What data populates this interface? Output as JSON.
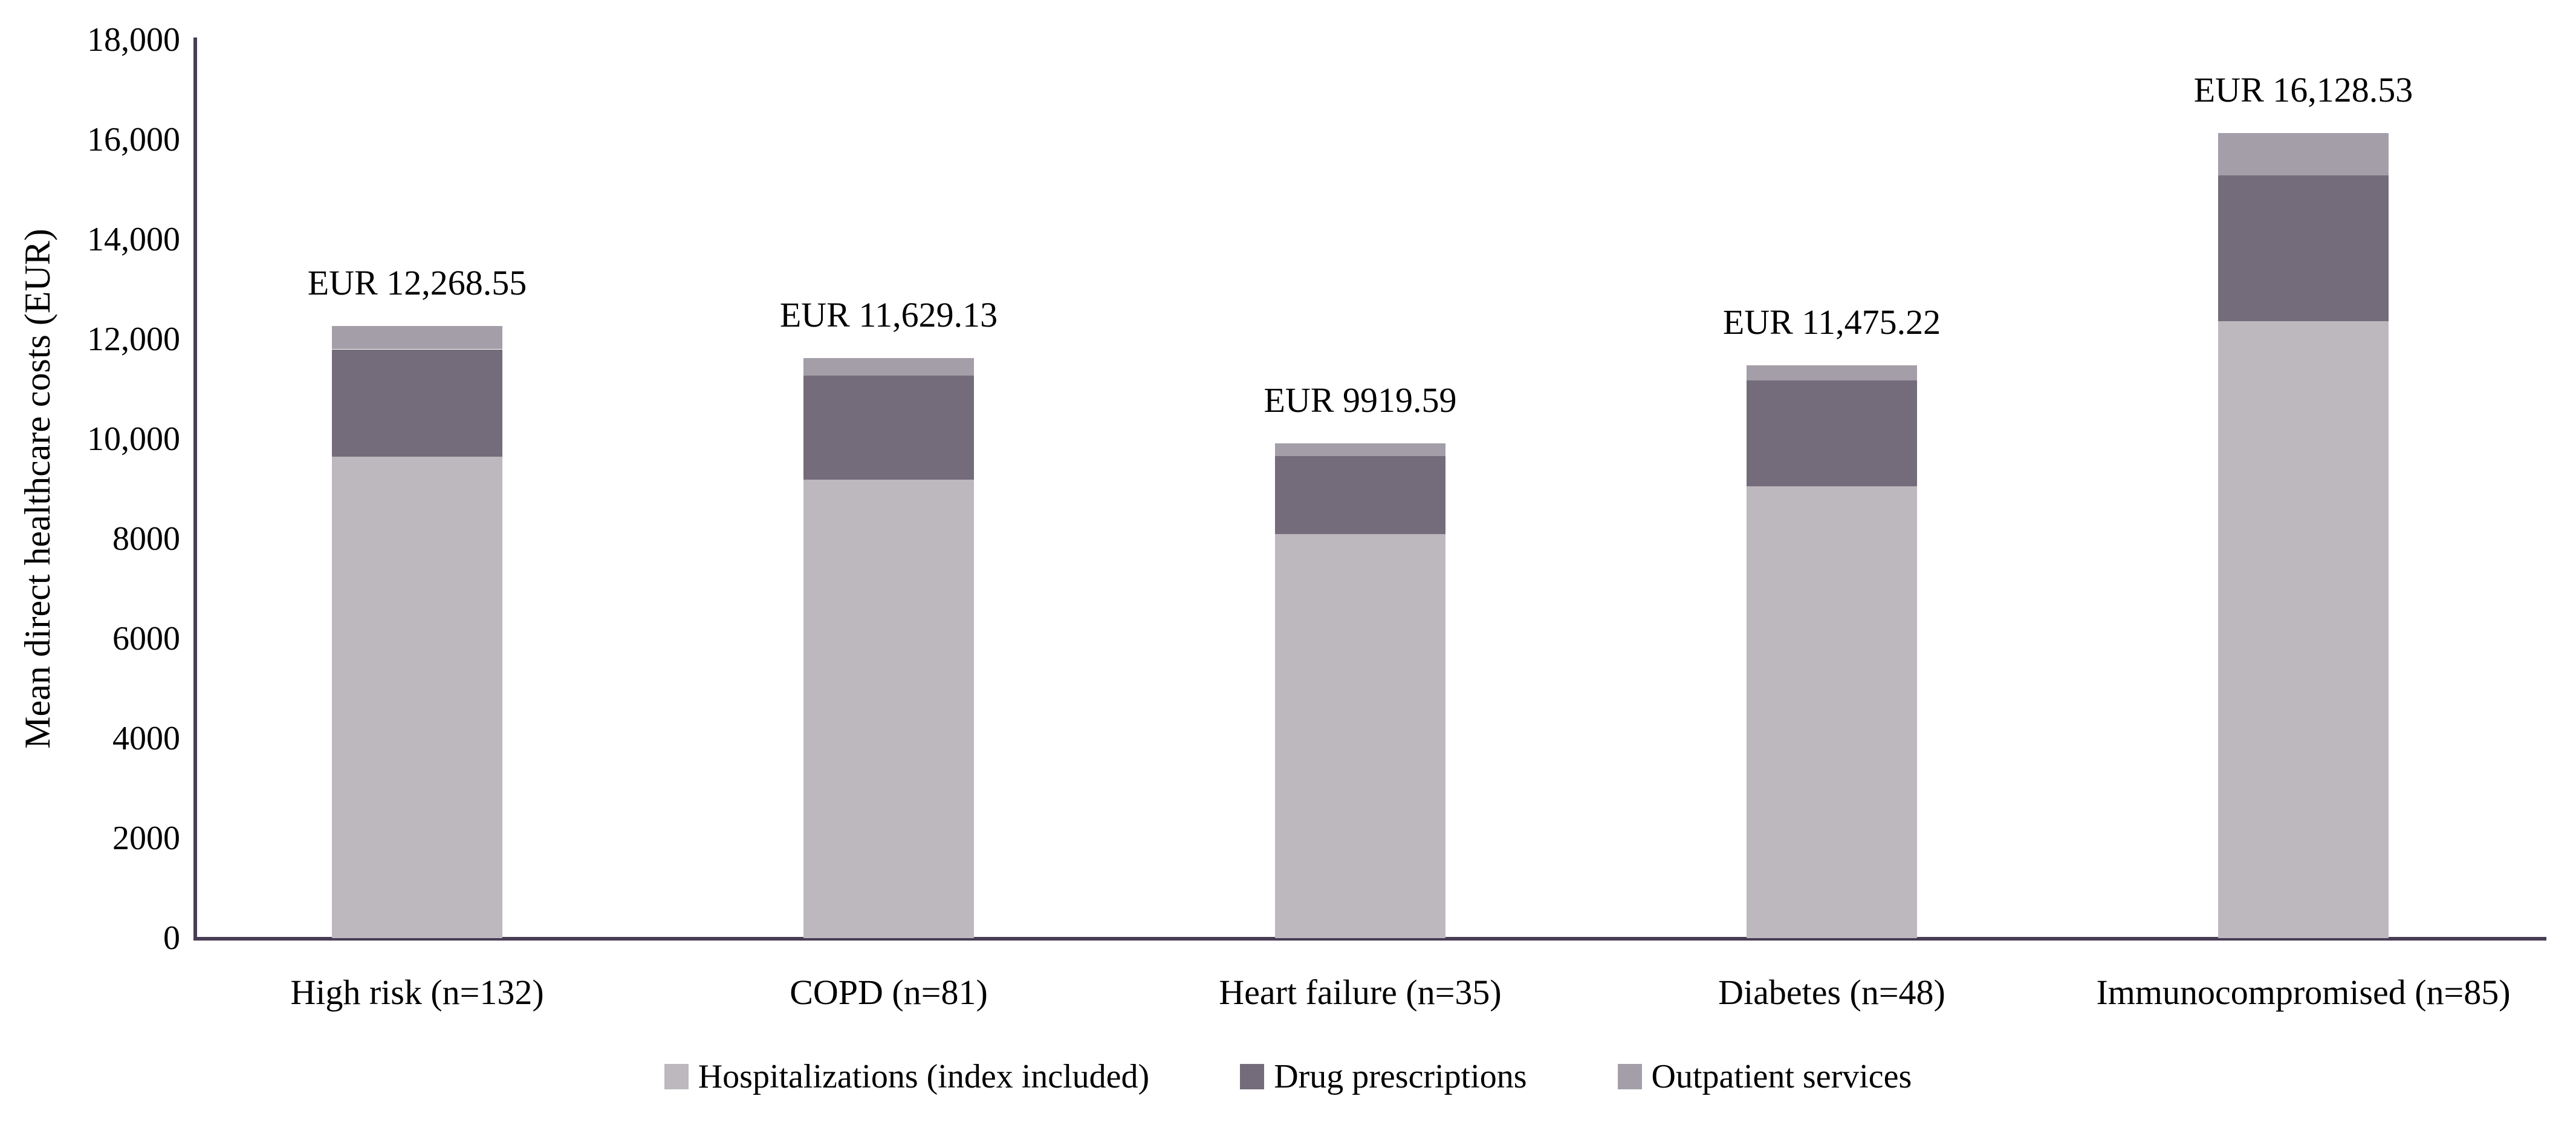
{
  "chart_data": {
    "type": "bar",
    "stacked": true,
    "title": "",
    "xlabel": "",
    "ylabel": "Mean direct healthcare costs (EUR)",
    "ylim": [
      0,
      18000
    ],
    "grid": false,
    "legend_position": "bottom",
    "axis_color": "#473d54",
    "text_color": "#000000",
    "yticks": [
      {
        "value": 0,
        "label": "0"
      },
      {
        "value": 2000,
        "label": "2000"
      },
      {
        "value": 4000,
        "label": "4000"
      },
      {
        "value": 6000,
        "label": "6000"
      },
      {
        "value": 8000,
        "label": "8000"
      },
      {
        "value": 10000,
        "label": "10,000"
      },
      {
        "value": 12000,
        "label": "12,000"
      },
      {
        "value": 14000,
        "label": "14,000"
      },
      {
        "value": 16000,
        "label": "16,000"
      },
      {
        "value": 18000,
        "label": "18,000"
      }
    ],
    "categories": [
      "High risk (n=132)",
      "COPD (n=81)",
      "Heart failure (n=35)",
      "Diabetes (n=48)",
      "Immunocompromised (n=85)"
    ],
    "series": [
      {
        "name": "Hospitalizations (index included)",
        "color": "#bcb8be",
        "values": [
          9650,
          9190,
          8100,
          9050,
          12360
        ]
      },
      {
        "name": "Drug prescriptions",
        "color": "#746c7a",
        "values": [
          2150,
          2080,
          1560,
          2120,
          2920
        ]
      },
      {
        "name": "Outpatient services",
        "color": "#a39ea7",
        "values": [
          470,
          360,
          260,
          305,
          850
        ]
      }
    ],
    "totals": [
      12268.55,
      11629.13,
      9919.59,
      11475.22,
      16128.53
    ],
    "bar_labels": [
      "EUR 12,268.55",
      "EUR 11,629.13",
      "EUR 9919.59",
      "EUR 11,475.22",
      "EUR 16,128.53"
    ]
  }
}
